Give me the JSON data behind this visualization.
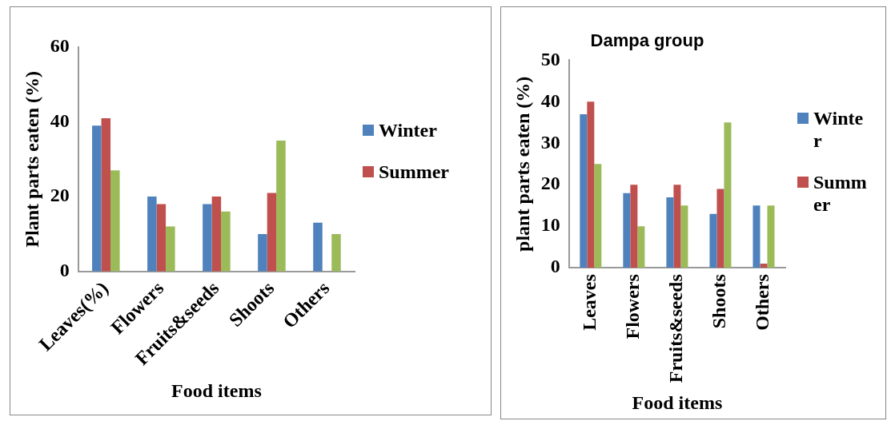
{
  "chart_data": [
    {
      "type": "bar",
      "ylabel": "Plant parts eaten (%)",
      "xlabel": "Food items",
      "categories": [
        "Leaves(%)",
        "Flowers",
        "Fruits&seeds",
        "Shoots",
        "Others"
      ],
      "ylim": [
        0,
        60
      ],
      "yticks": [
        0,
        20,
        40,
        60
      ],
      "grid": false,
      "legend": "right",
      "series": [
        {
          "name": "Winter",
          "color": "#4f81bd",
          "values": [
            39,
            20,
            18,
            10,
            13
          ]
        },
        {
          "name": "Summer",
          "color": "#c0504d",
          "values": [
            41,
            18,
            20,
            21,
            0
          ]
        },
        {
          "color": "#9bbb59",
          "values": [
            27,
            12,
            16,
            35,
            10
          ]
        }
      ]
    },
    {
      "type": "bar",
      "title": "Dampa group",
      "ylabel": "plant parts eaten (%)",
      "xlabel": "Food items",
      "categories": [
        "Leaves",
        "Flowers",
        "Fruits&seeds",
        "Shoots",
        "Others"
      ],
      "ylim": [
        0,
        50
      ],
      "yticks": [
        0,
        10,
        20,
        30,
        40,
        50
      ],
      "grid": false,
      "legend": "right",
      "series": [
        {
          "name": "Winter",
          "color": "#4f81bd",
          "values": [
            37,
            18,
            17,
            13,
            15
          ]
        },
        {
          "name": "Summer",
          "color": "#c0504d",
          "values": [
            40,
            20,
            20,
            19,
            1
          ]
        },
        {
          "color": "#9bbb59",
          "values": [
            25,
            10,
            15,
            35,
            15
          ]
        }
      ]
    }
  ]
}
